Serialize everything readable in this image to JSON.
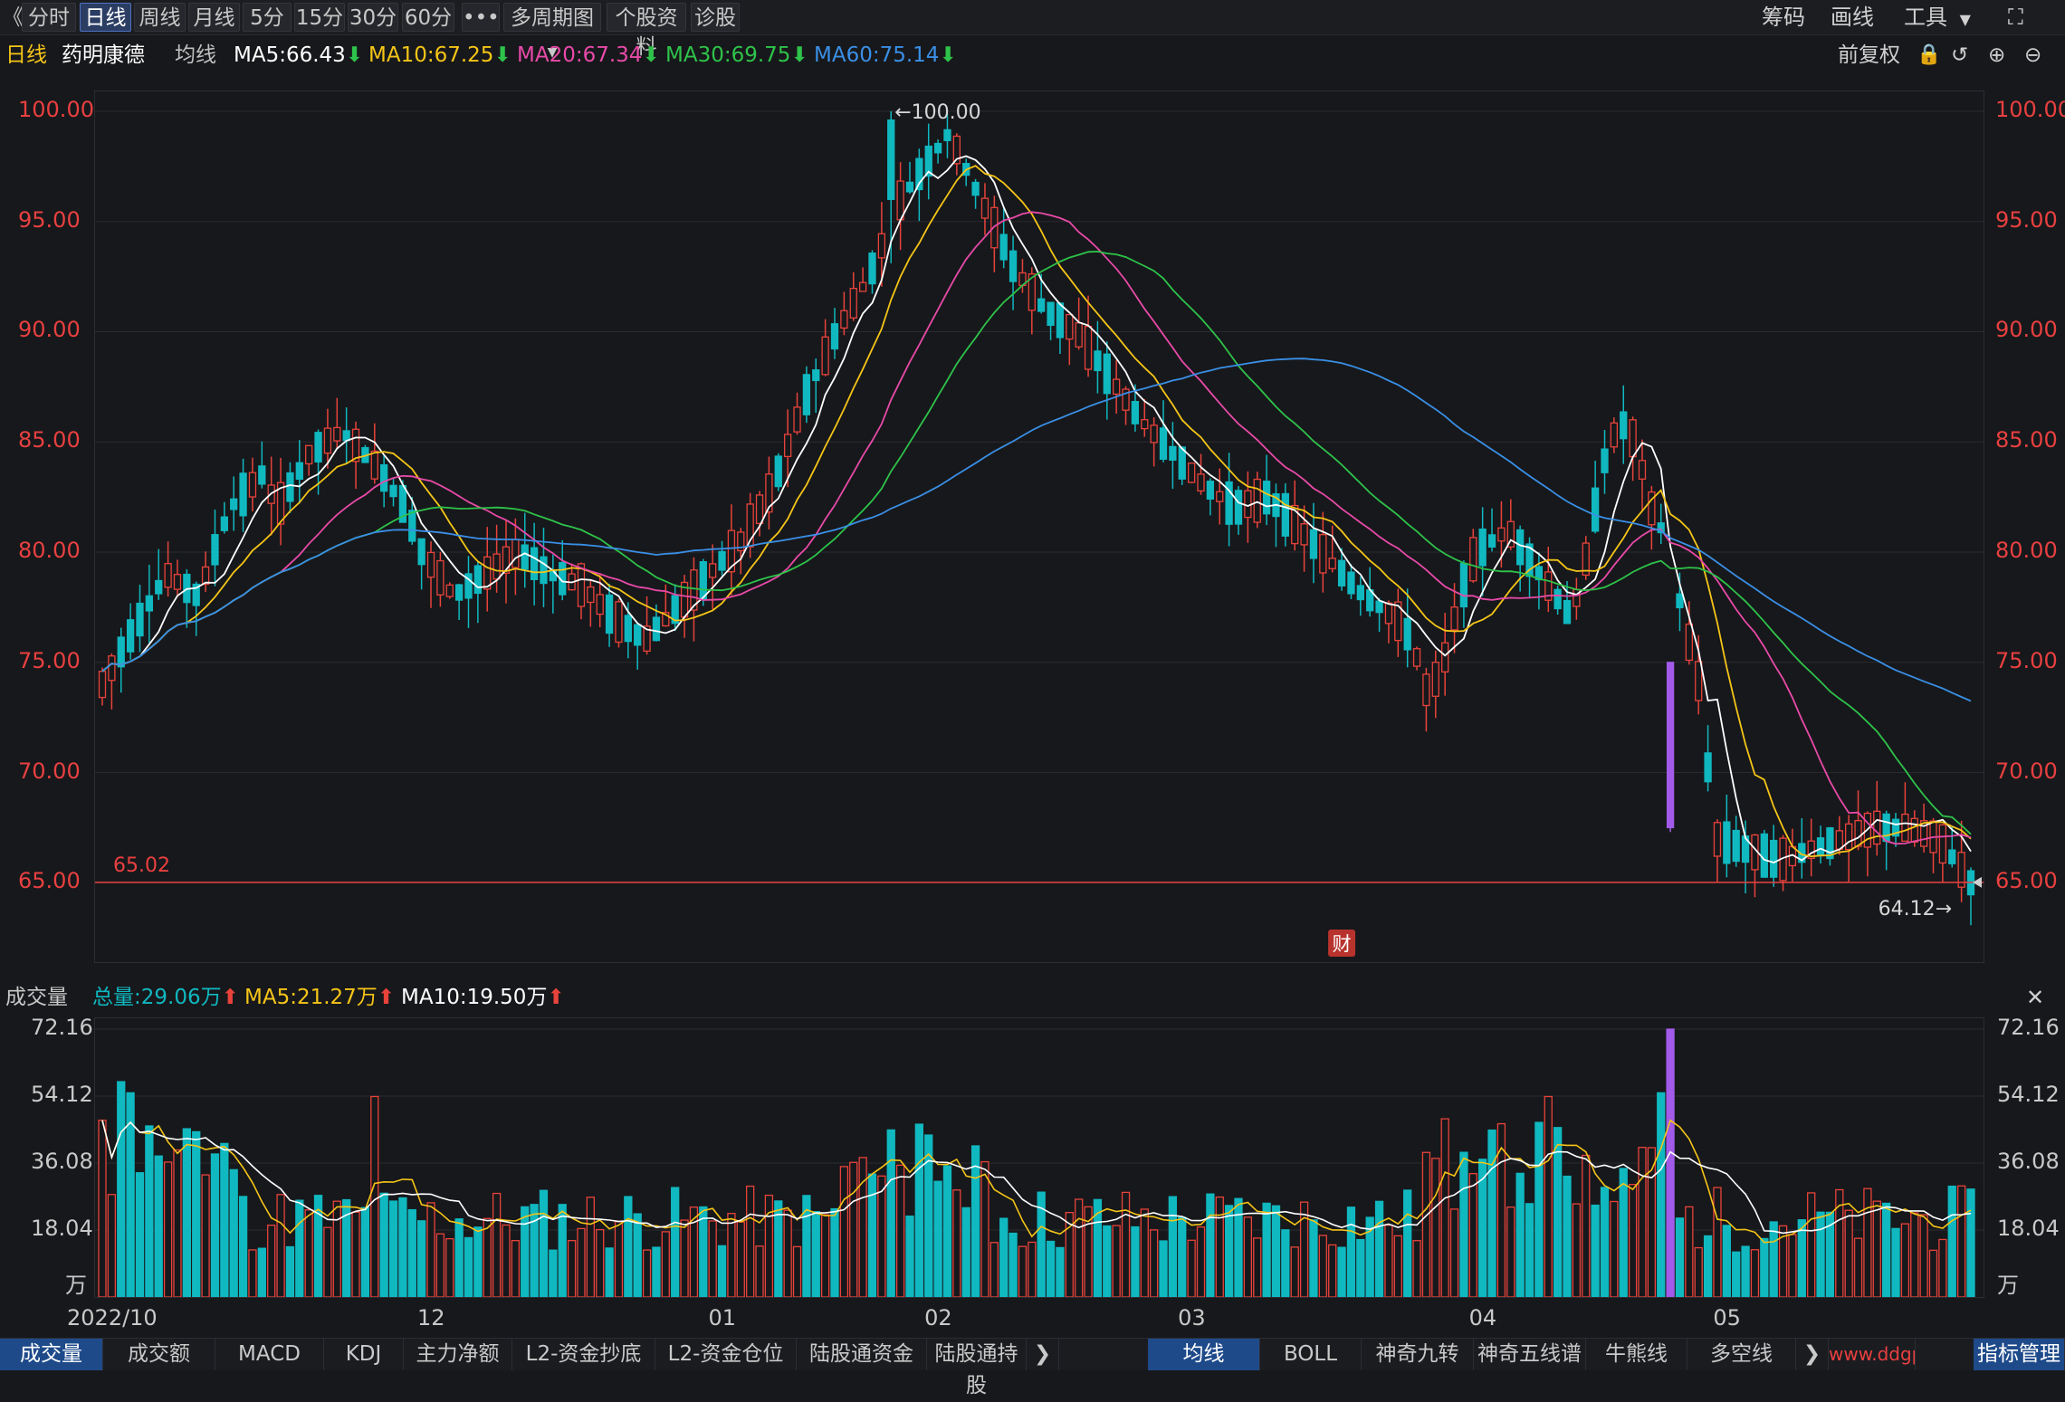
{
  "toolbar": {
    "back_glyph": "《",
    "buttons": [
      "分时",
      "日线",
      "周线",
      "月线",
      "5分",
      "15分",
      "30分",
      "60分",
      "•••",
      "多周期图",
      "个股资料",
      "诊股"
    ],
    "active": "日线",
    "right": [
      "筹码",
      "画线",
      "工具"
    ],
    "expand_glyph": "⛶"
  },
  "info": {
    "period": "日线",
    "stock_name": "药明康德",
    "ma_label": "均线",
    "ma5": "MA5:66.43",
    "ma10": "MA10:67.25",
    "ma20": "MA20:67.34",
    "ma30": "MA30:69.75",
    "ma60": "MA60:75.14",
    "adjust": "前复权"
  },
  "colors": {
    "up": "#e8433b",
    "down": "#10b8c0",
    "ma5": "#ffffff",
    "ma10": "#f5c518",
    "ma20": "#e84aa8",
    "ma30": "#2ec34a",
    "ma60": "#3a8fe6",
    "axis_red": "#e84040",
    "purple": "#a25ae8"
  },
  "price_axis": {
    "ticks": [
      "100.00",
      "95.00",
      "90.00",
      "85.00",
      "80.00",
      "75.00",
      "70.00",
      "65.00"
    ],
    "values": [
      100,
      95,
      90,
      85,
      80,
      75,
      70,
      65
    ],
    "min": 61.4,
    "max": 100.9,
    "high_label": "100.00",
    "low_label": "64.12",
    "ref_label": "65.02",
    "ref_value": 65.02,
    "event_badge": "财"
  },
  "volume": {
    "title": "成交量",
    "total": "总量:29.06万",
    "ma5": "MA5:21.27万",
    "ma10": "MA10:19.50万",
    "ticks": [
      "72.16",
      "54.12",
      "36.08",
      "18.04"
    ],
    "tick_values": [
      72.16,
      54.12,
      36.08,
      18.04
    ],
    "unit": "万",
    "max": 72.16,
    "close_glyph": "✕"
  },
  "x_axis": [
    "2022/10",
    "12",
    "01",
    "02",
    "03",
    "04",
    "05"
  ],
  "bottom_tabs_left": [
    "成交量",
    "成交额",
    "MACD",
    "KDJ",
    "主力净额",
    "L2-资金抄底",
    "L2-资金仓位",
    "陆股通资金",
    "陆股通持股"
  ],
  "bottom_tabs_right": [
    "均线",
    "BOLL",
    "神奇九转",
    "神奇五线谱",
    "牛熊线",
    "多空线"
  ],
  "bottom_tabs_more": "指标管理",
  "watermark": "www.ddgp.com"
}
